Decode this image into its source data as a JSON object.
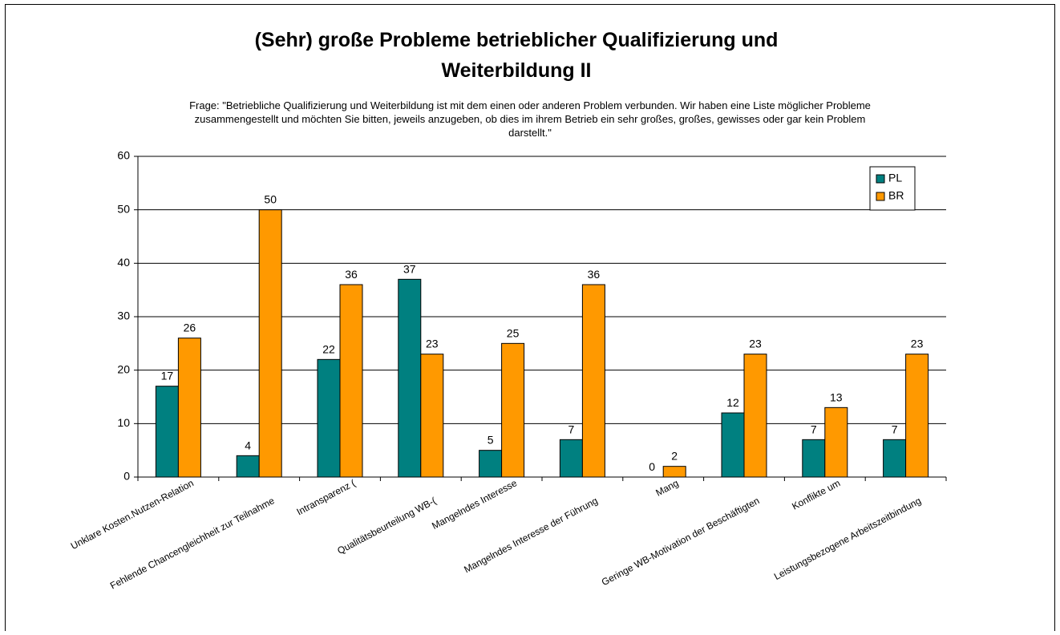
{
  "chart_data": {
    "type": "bar",
    "title": [
      "(Sehr) große Probleme betrieblicher Qualifizierung und",
      "Weiterbildung II"
    ],
    "subtitle": [
      "Frage: \"Betriebliche Qualifizierung und Weiterbildung ist mit dem einen oder anderen Problem verbunden. Wir haben eine Liste möglicher Probleme",
      "zusammengestellt und möchten Sie bitten, jeweils anzugeben, ob dies im ihrem Betrieb ein sehr großes, großes, gewisses oder gar kein Problem",
      "darstellt.\""
    ],
    "categories": [
      "Unklare Kosten.Nutzen-Relation",
      "Fehlende Chancengleichheit zur Teilnahme",
      "Intransparenz (",
      "Qualitätsbeurteilung WB-(",
      "Mangelndes Interesse",
      "Mangelndes Interesse der Führung",
      "Mang",
      "Geringe WB-Motivation der Beschäftigten",
      "Konflikte um",
      "Leistungsbezogene Arbeitszeitbindung"
    ],
    "series": [
      {
        "name": "PL",
        "color": "#008080",
        "values": [
          17,
          4,
          22,
          37,
          5,
          7,
          0,
          12,
          7,
          7
        ]
      },
      {
        "name": "BR",
        "color": "#ff9900",
        "values": [
          26,
          50,
          36,
          23,
          25,
          36,
          2,
          23,
          13,
          23
        ]
      }
    ],
    "ylim": [
      0,
      60
    ],
    "yticks": [
      0,
      10,
      20,
      30,
      40,
      50,
      60
    ],
    "grid": true,
    "legend": "top-right"
  }
}
